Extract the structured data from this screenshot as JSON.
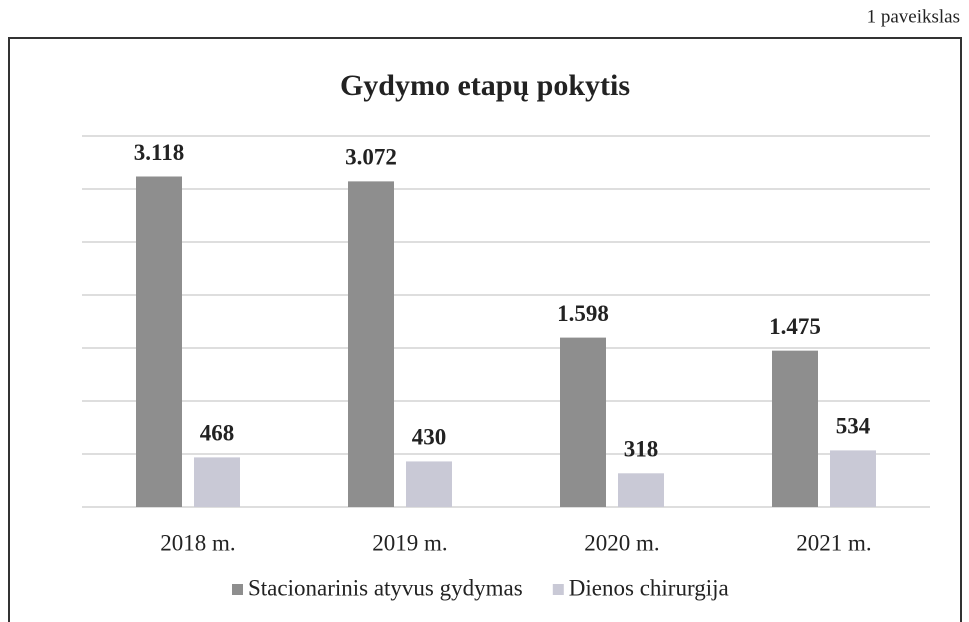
{
  "caption": "1 paveikslas",
  "chart_data": {
    "type": "bar",
    "title": "Gydymo etapų pokytis",
    "categories": [
      "2018 m.",
      "2019 m.",
      "2020 m.",
      "2021 m."
    ],
    "series": [
      {
        "name": "Stacionarinis atyvus gydymas",
        "color": "#8e8e8e",
        "values": [
          3118,
          3072,
          1598,
          1475
        ],
        "value_labels": [
          "3.118",
          "3.072",
          "1.598",
          "1.475"
        ]
      },
      {
        "name": "Dienos chirurgija",
        "color": "#c9c9d6",
        "values": [
          468,
          430,
          318,
          534
        ],
        "value_labels": [
          "468",
          "430",
          "318",
          "534"
        ]
      }
    ],
    "ylim": [
      0,
      3500
    ],
    "yticks": [
      0,
      500,
      1000,
      1500,
      2000,
      2500,
      3000,
      3500
    ],
    "show_ytick_labels": false,
    "grid": true,
    "legend": "bottom"
  }
}
